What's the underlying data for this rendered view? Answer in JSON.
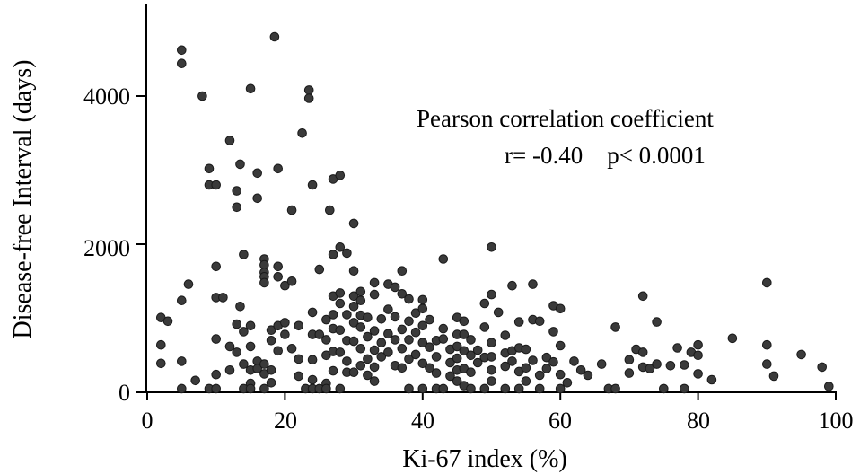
{
  "chart_data": {
    "type": "scatter",
    "title": "",
    "xlabel": "Ki-67 index (%)",
    "ylabel": "Disease-free Interval (days)",
    "xlim": [
      0,
      100
    ],
    "ylim": [
      0,
      5000
    ],
    "x_ticks": [
      "0",
      "20",
      "40",
      "60",
      "80",
      "100"
    ],
    "y_ticks": [
      "0",
      "2000",
      "4000"
    ],
    "annotation_line1": "Pearson correlation coefficient",
    "annotation_line2": "r= -0.40    p< 0.0001",
    "point_color": "#3a3a3a",
    "grid": false,
    "points": [
      [
        5,
        4620
      ],
      [
        5,
        4440
      ],
      [
        8,
        4000
      ],
      [
        15,
        4100
      ],
      [
        18.5,
        4800
      ],
      [
        23.5,
        4080
      ],
      [
        23.5,
        3970
      ],
      [
        12,
        3400
      ],
      [
        9,
        3020
      ],
      [
        9,
        2800
      ],
      [
        10,
        2800
      ],
      [
        13.5,
        3080
      ],
      [
        16,
        2960
      ],
      [
        19,
        3020
      ],
      [
        22.5,
        3500
      ],
      [
        13,
        2720
      ],
      [
        16,
        2620
      ],
      [
        13,
        2500
      ],
      [
        21,
        2460
      ],
      [
        24,
        2800
      ],
      [
        26.5,
        2460
      ],
      [
        27,
        2880
      ],
      [
        28,
        2930
      ],
      [
        30,
        2280
      ],
      [
        28,
        1960
      ],
      [
        29,
        1880
      ],
      [
        27,
        1860
      ],
      [
        25,
        1660
      ],
      [
        10,
        1700
      ],
      [
        14,
        1860
      ],
      [
        17,
        1800
      ],
      [
        17,
        1720
      ],
      [
        17,
        1620
      ],
      [
        17,
        1560
      ],
      [
        17,
        1480
      ],
      [
        19,
        1700
      ],
      [
        19,
        1560
      ],
      [
        20,
        1440
      ],
      [
        21,
        1500
      ],
      [
        6,
        1460
      ],
      [
        5,
        1240
      ],
      [
        10,
        1280
      ],
      [
        11,
        1280
      ],
      [
        13.5,
        1160
      ],
      [
        13,
        920
      ],
      [
        14,
        820
      ],
      [
        15,
        900
      ],
      [
        18,
        840
      ],
      [
        19,
        900
      ],
      [
        20,
        940
      ],
      [
        22,
        900
      ],
      [
        2,
        1010
      ],
      [
        3,
        960
      ],
      [
        2,
        640
      ],
      [
        2,
        390
      ],
      [
        5,
        420
      ],
      [
        5,
        50
      ],
      [
        7,
        160
      ],
      [
        9,
        50
      ],
      [
        10,
        720
      ],
      [
        10,
        240
      ],
      [
        10,
        50
      ],
      [
        12,
        620
      ],
      [
        12,
        300
      ],
      [
        13,
        540
      ],
      [
        14,
        380
      ],
      [
        14,
        50
      ],
      [
        15,
        620
      ],
      [
        15,
        300
      ],
      [
        15,
        120
      ],
      [
        15,
        50
      ],
      [
        16,
        420
      ],
      [
        16,
        320
      ],
      [
        17,
        380
      ],
      [
        17,
        250
      ],
      [
        17,
        50
      ],
      [
        18,
        700
      ],
      [
        18,
        300
      ],
      [
        18,
        130
      ],
      [
        19,
        560
      ],
      [
        20,
        780
      ],
      [
        21,
        590
      ],
      [
        22,
        450
      ],
      [
        22,
        220
      ],
      [
        23,
        50
      ],
      [
        24,
        1080
      ],
      [
        24,
        780
      ],
      [
        24,
        440
      ],
      [
        24,
        170
      ],
      [
        24,
        50
      ],
      [
        25,
        780
      ],
      [
        25,
        50
      ],
      [
        26,
        980
      ],
      [
        26,
        710
      ],
      [
        26,
        500
      ],
      [
        26,
        120
      ],
      [
        26,
        50
      ],
      [
        27,
        1300
      ],
      [
        27,
        1050
      ],
      [
        27,
        860
      ],
      [
        27,
        550
      ],
      [
        27,
        290
      ],
      [
        28,
        1340
      ],
      [
        28,
        1200
      ],
      [
        28,
        840
      ],
      [
        28,
        540
      ],
      [
        28,
        50
      ],
      [
        29,
        1050
      ],
      [
        29,
        700
      ],
      [
        29,
        420
      ],
      [
        29,
        270
      ],
      [
        30,
        1640
      ],
      [
        30,
        1300
      ],
      [
        30,
        1160
      ],
      [
        30,
        940
      ],
      [
        30,
        690
      ],
      [
        30,
        270
      ],
      [
        31,
        1360
      ],
      [
        31,
        1240
      ],
      [
        31,
        1040
      ],
      [
        31,
        880
      ],
      [
        31,
        590
      ],
      [
        31,
        360
      ],
      [
        32,
        1010
      ],
      [
        32,
        750
      ],
      [
        32,
        450
      ],
      [
        32,
        230
      ],
      [
        33,
        1480
      ],
      [
        33,
        1320
      ],
      [
        33,
        830
      ],
      [
        33,
        570
      ],
      [
        33,
        340
      ],
      [
        33,
        150
      ],
      [
        34,
        990
      ],
      [
        34,
        670
      ],
      [
        34,
        480
      ],
      [
        35,
        1460
      ],
      [
        35,
        1120
      ],
      [
        35,
        790
      ],
      [
        35,
        540
      ],
      [
        36,
        1420
      ],
      [
        36,
        1020
      ],
      [
        36,
        710
      ],
      [
        36,
        360
      ],
      [
        37,
        1640
      ],
      [
        37,
        1330
      ],
      [
        37,
        850
      ],
      [
        37,
        590
      ],
      [
        37,
        330
      ],
      [
        38,
        1260
      ],
      [
        38,
        960
      ],
      [
        38,
        710
      ],
      [
        38,
        450
      ],
      [
        38,
        50
      ],
      [
        39,
        1070
      ],
      [
        39,
        810
      ],
      [
        39,
        510
      ],
      [
        40,
        1250
      ],
      [
        40,
        1130
      ],
      [
        40,
        900
      ],
      [
        40,
        670
      ],
      [
        40,
        390
      ],
      [
        40,
        50
      ],
      [
        41,
        980
      ],
      [
        41,
        610
      ],
      [
        41,
        330
      ],
      [
        42,
        700
      ],
      [
        42,
        480
      ],
      [
        42,
        260
      ],
      [
        42,
        50
      ],
      [
        43,
        1800
      ],
      [
        43,
        860
      ],
      [
        43,
        720
      ],
      [
        43,
        50
      ],
      [
        44,
        580
      ],
      [
        44,
        400
      ],
      [
        44,
        220
      ],
      [
        45,
        1010
      ],
      [
        45,
        780
      ],
      [
        45,
        620
      ],
      [
        45,
        460
      ],
      [
        45,
        300
      ],
      [
        45,
        150
      ],
      [
        46,
        960
      ],
      [
        46,
        780
      ],
      [
        46,
        560
      ],
      [
        46,
        320
      ],
      [
        46,
        90
      ],
      [
        47,
        710
      ],
      [
        47,
        500
      ],
      [
        47,
        270
      ],
      [
        47,
        50
      ],
      [
        48,
        570
      ],
      [
        48,
        400
      ],
      [
        49,
        1200
      ],
      [
        49,
        880
      ],
      [
        49,
        470
      ],
      [
        49,
        50
      ],
      [
        50,
        1960
      ],
      [
        50,
        1320
      ],
      [
        50,
        670
      ],
      [
        50,
        480
      ],
      [
        50,
        300
      ],
      [
        50,
        150
      ],
      [
        51,
        1080
      ],
      [
        52,
        770
      ],
      [
        52,
        530
      ],
      [
        52,
        350
      ],
      [
        52,
        50
      ],
      [
        53,
        1440
      ],
      [
        53,
        560
      ],
      [
        53,
        420
      ],
      [
        54,
        950
      ],
      [
        54,
        600
      ],
      [
        54,
        280
      ],
      [
        54,
        50
      ],
      [
        55,
        580
      ],
      [
        55,
        330
      ],
      [
        55,
        150
      ],
      [
        56,
        1460
      ],
      [
        56,
        980
      ],
      [
        56,
        430
      ],
      [
        57,
        960
      ],
      [
        57,
        230
      ],
      [
        57,
        50
      ],
      [
        58,
        470
      ],
      [
        58,
        320
      ],
      [
        59,
        1170
      ],
      [
        59,
        820
      ],
      [
        59,
        410
      ],
      [
        60,
        1130
      ],
      [
        60,
        630
      ],
      [
        60,
        240
      ],
      [
        60,
        50
      ],
      [
        61,
        130
      ],
      [
        62,
        420
      ],
      [
        63,
        300
      ],
      [
        64,
        230
      ],
      [
        66,
        380
      ],
      [
        67,
        50
      ],
      [
        68,
        880
      ],
      [
        68,
        50
      ],
      [
        70,
        440
      ],
      [
        70,
        260
      ],
      [
        71,
        580
      ],
      [
        72,
        1300
      ],
      [
        72,
        540
      ],
      [
        72,
        340
      ],
      [
        73,
        320
      ],
      [
        74,
        950
      ],
      [
        74,
        380
      ],
      [
        75,
        50
      ],
      [
        76,
        360
      ],
      [
        77,
        600
      ],
      [
        78,
        370
      ],
      [
        78,
        50
      ],
      [
        79,
        540
      ],
      [
        80,
        640
      ],
      [
        80,
        500
      ],
      [
        80,
        250
      ],
      [
        82,
        170
      ],
      [
        85,
        730
      ],
      [
        90,
        1480
      ],
      [
        90,
        640
      ],
      [
        90,
        380
      ],
      [
        91,
        220
      ],
      [
        95,
        510
      ],
      [
        98,
        340
      ],
      [
        99,
        80
      ]
    ]
  }
}
